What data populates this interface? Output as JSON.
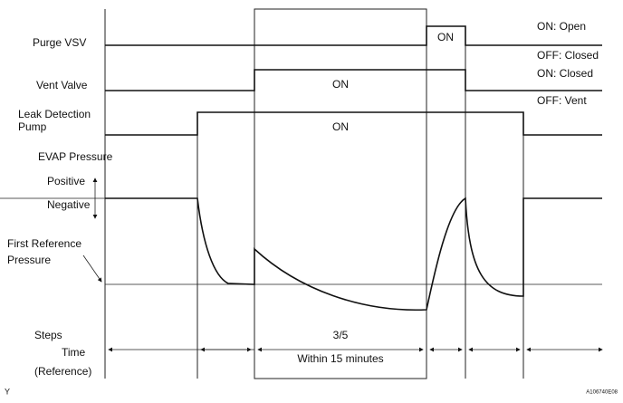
{
  "diagram": {
    "row_labels": {
      "purge_vsv": "Purge VSV",
      "vent_valve": "Vent Valve",
      "leak_pump": [
        "Leak Detection",
        "Pump"
      ],
      "evap_pressure": "EVAP Pressure",
      "positive": "Positive",
      "negative": "Negative",
      "first_reference": [
        "First Reference",
        "Pressure"
      ],
      "steps": "Steps",
      "time": "Time",
      "reference": "(Reference)"
    },
    "legend": {
      "purge_on": "ON: Open",
      "purge_off": "OFF: Closed",
      "vent_on": "ON: Closed",
      "vent_off": "OFF: Vent"
    },
    "signal_labels": {
      "purge": "ON",
      "vent": "ON",
      "pump": "ON"
    },
    "step_label": "3/5",
    "step_note": "Within 15 minutes",
    "footer": {
      "left": "Y",
      "right": "A106740E08"
    }
  }
}
